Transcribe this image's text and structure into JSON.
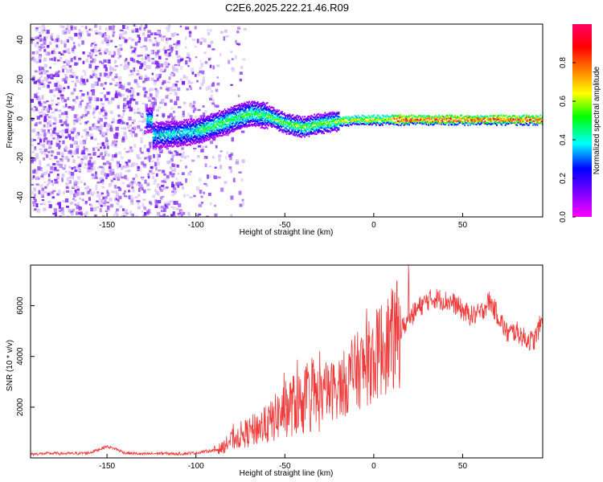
{
  "title": "C2E6.2025.222.21.46.R09",
  "colors": {
    "line": "#ef3a3a",
    "axis": "#000000",
    "low": "#7a22f0",
    "high": "#ff1a5c",
    "colorbar": [
      "#ff00ff",
      "#8000ff",
      "#0000ff",
      "#00ffff",
      "#00ff00",
      "#ffff00",
      "#ff8000",
      "#ff0000",
      "#ff0066"
    ]
  },
  "chart_data": [
    {
      "type": "heatmap",
      "title": "",
      "xlabel": "Height of straight line (km)",
      "ylabel": "Frequency (Hz)",
      "xlim": [
        -193,
        95
      ],
      "ylim": [
        -50,
        48
      ],
      "x_ticks": [
        "-150",
        "-100",
        "-50",
        "0",
        "50"
      ],
      "y_ticks": [
        "-40",
        "-20",
        "0",
        "20",
        "40"
      ],
      "colorbar_label": "Normalized spectral amplitude",
      "colorbar_range": [
        0,
        1
      ],
      "colorbar_ticks": [
        "0.0",
        "0.2",
        "0.4",
        "0.6",
        "0.8"
      ],
      "ridge": [
        {
          "x": -125,
          "f": -8
        },
        {
          "x": -110,
          "f": -7
        },
        {
          "x": -100,
          "f": -6
        },
        {
          "x": -90,
          "f": -3
        },
        {
          "x": -80,
          "f": 0
        },
        {
          "x": -70,
          "f": 3
        },
        {
          "x": -60,
          "f": 2
        },
        {
          "x": -50,
          "f": -2
        },
        {
          "x": -40,
          "f": -4
        },
        {
          "x": -30,
          "f": -2
        },
        {
          "x": -20,
          "f": -1
        },
        {
          "x": -10,
          "f": 0
        },
        {
          "x": 0,
          "f": 0
        },
        {
          "x": 10,
          "f": 0
        },
        {
          "x": 50,
          "f": 0
        },
        {
          "x": 95,
          "f": 0
        }
      ]
    },
    {
      "type": "line",
      "title": "",
      "xlabel": "Height of straight line (km)",
      "ylabel": "SNR (10 * v/v)",
      "xlim": [
        -193,
        95
      ],
      "ylim": [
        0,
        7600
      ],
      "x_ticks": [
        "-150",
        "-100",
        "-50",
        "0",
        "50"
      ],
      "y_ticks": [
        "2000",
        "4000",
        "6000"
      ],
      "x": [
        -193,
        -180,
        -170,
        -160,
        -150,
        -145,
        -140,
        -130,
        -120,
        -110,
        -100,
        -90,
        -85,
        -80,
        -75,
        -70,
        -65,
        -60,
        -55,
        -50,
        -45,
        -40,
        -35,
        -30,
        -25,
        -20,
        -15,
        -10,
        -5,
        0,
        5,
        10,
        15,
        20,
        25,
        30,
        35,
        40,
        45,
        50,
        55,
        60,
        65,
        70,
        75,
        80,
        85,
        90,
        95
      ],
      "y": [
        150,
        180,
        170,
        200,
        450,
        350,
        200,
        150,
        180,
        160,
        200,
        300,
        400,
        700,
        900,
        1000,
        1200,
        1300,
        1600,
        1900,
        2100,
        2200,
        2300,
        2400,
        2600,
        2800,
        3000,
        3400,
        3600,
        3900,
        4400,
        4600,
        5000,
        5500,
        5900,
        6200,
        6300,
        6200,
        6100,
        5800,
        5600,
        5700,
        6200,
        5600,
        4900,
        5000,
        4700,
        4600,
        5500
      ]
    }
  ]
}
